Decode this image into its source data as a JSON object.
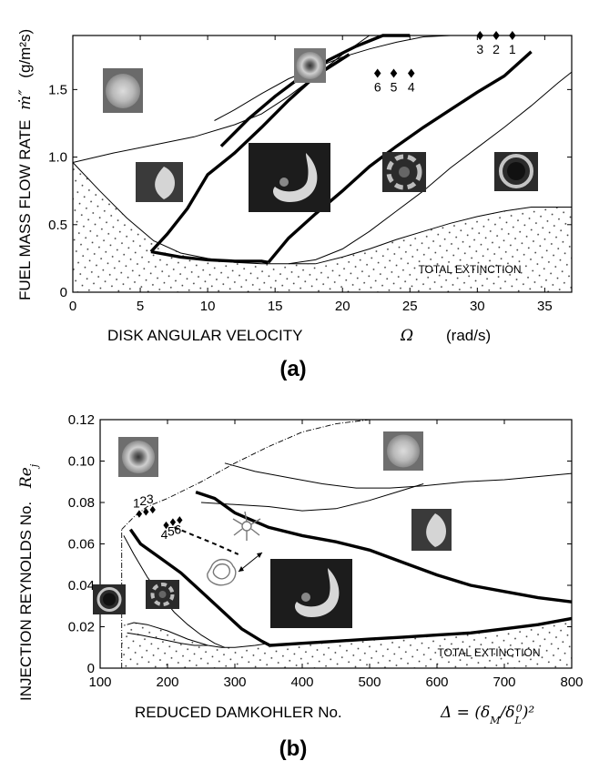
{
  "chart_data": [
    {
      "type": "line",
      "panel_label": "(a)",
      "xlabel": "DISK ANGULAR VELOCITY",
      "xsymbol": "Ω",
      "xunit": "(rad/s)",
      "ylabel": "FUEL MASS FLOW RATE",
      "ysymbol": "ṁ″",
      "yunit": "(g/m²s)",
      "xlim": [
        0,
        37
      ],
      "ylim": [
        0,
        1.9
      ],
      "xticks": [
        0,
        5,
        10,
        15,
        20,
        25,
        30,
        35
      ],
      "yticks": [
        0,
        0.5,
        1.0,
        1.5
      ],
      "ytick_labels": [
        "0",
        "0.5",
        "1.0",
        "1.5"
      ],
      "annotations": [
        {
          "text": "TOTAL EXTINCTION",
          "x": 30,
          "y": 0.17
        }
      ],
      "markers": [
        {
          "label": "6",
          "x": 22.6,
          "y": 1.62
        },
        {
          "label": "5",
          "x": 23.8,
          "y": 1.62
        },
        {
          "label": "4",
          "x": 25.1,
          "y": 1.62
        },
        {
          "label": "3",
          "x": 30.2,
          "y": 1.92
        },
        {
          "label": "2",
          "x": 31.4,
          "y": 1.92
        },
        {
          "label": "1",
          "x": 32.6,
          "y": 1.92
        }
      ],
      "series": [
        {
          "style": "thin",
          "x": [
            0,
            2,
            4,
            6,
            8,
            10,
            12,
            14,
            16,
            18
          ],
          "y": [
            0.96,
            0.75,
            0.55,
            0.38,
            0.29,
            0.25,
            0.22,
            0.21,
            0.21,
            0.21
          ]
        },
        {
          "style": "thin",
          "x": [
            0,
            3,
            6,
            9,
            12,
            14,
            16,
            18,
            20,
            22,
            24
          ],
          "y": [
            0.96,
            1.03,
            1.09,
            1.15,
            1.24,
            1.32,
            1.45,
            1.6,
            1.76,
            1.9,
            2.05
          ]
        },
        {
          "style": "thin",
          "x": [
            10.5,
            12,
            14,
            16,
            18,
            20,
            22,
            24,
            26,
            28,
            30,
            32,
            34,
            37
          ],
          "y": [
            1.27,
            1.35,
            1.47,
            1.58,
            1.66,
            1.74,
            1.8,
            1.85,
            1.89,
            1.92,
            1.94,
            1.95,
            1.96,
            1.96
          ]
        },
        {
          "style": "thin",
          "x": [
            16,
            18,
            20,
            22,
            24,
            26,
            28,
            30,
            32,
            34,
            36,
            37
          ],
          "y": [
            0.21,
            0.24,
            0.32,
            0.45,
            0.6,
            0.75,
            0.92,
            1.07,
            1.22,
            1.38,
            1.55,
            1.63
          ]
        },
        {
          "style": "thin",
          "x": [
            18,
            20,
            22,
            24,
            26,
            28,
            30,
            32,
            34,
            37
          ],
          "y": [
            0.21,
            0.26,
            0.32,
            0.39,
            0.45,
            0.51,
            0.56,
            0.6,
            0.63,
            0.63
          ]
        },
        {
          "style": "thick",
          "x": [
            5.8,
            7,
            8.5,
            10,
            12,
            14,
            16,
            18,
            20.5
          ],
          "y": [
            0.3,
            0.43,
            0.62,
            0.87,
            1.03,
            1.22,
            1.42,
            1.6,
            1.76
          ]
        },
        {
          "style": "thick",
          "x": [
            5.8,
            8,
            10,
            12,
            14,
            14.5
          ],
          "y": [
            0.3,
            0.26,
            0.24,
            0.23,
            0.23,
            0.22
          ]
        },
        {
          "style": "thick",
          "x": [
            11,
            13,
            15,
            17,
            19,
            21,
            23,
            25
          ],
          "y": [
            1.08,
            1.28,
            1.45,
            1.6,
            1.72,
            1.82,
            1.9,
            1.98
          ]
        },
        {
          "style": "thick",
          "x": [
            14.5,
            16,
            18,
            20,
            22,
            24,
            26,
            28,
            30,
            32,
            34
          ],
          "y": [
            0.22,
            0.4,
            0.58,
            0.75,
            0.93,
            1.08,
            1.22,
            1.35,
            1.48,
            1.6,
            1.78
          ]
        }
      ]
    },
    {
      "type": "line",
      "panel_label": "(b)",
      "xlabel": "REDUCED DAMKOHLER No.",
      "xsymbol": "Δ = (δM/δL0)²",
      "ylabel": "INJECTION REYNOLDS No.",
      "ysymbol": "Rej",
      "xlim": [
        100,
        800
      ],
      "ylim": [
        0,
        0.12
      ],
      "xticks": [
        100,
        200,
        300,
        400,
        500,
        600,
        700,
        800
      ],
      "yticks": [
        0,
        0.02,
        0.04,
        0.06,
        0.08,
        0.1,
        0.12
      ],
      "ytick_labels": [
        "0",
        "0.02",
        "0.04",
        "0.06",
        "0.08",
        "0.10",
        "0.12"
      ],
      "annotations": [
        {
          "text": "TOTAL EXTINCTION",
          "x": 670,
          "y": 0.0095
        }
      ],
      "markers": [
        {
          "label": "1",
          "x": 158,
          "y": 0.0745
        },
        {
          "label": "2",
          "x": 168,
          "y": 0.0755
        },
        {
          "label": "3",
          "x": 178,
          "y": 0.0765
        },
        {
          "label": "4",
          "x": 198,
          "y": 0.069
        },
        {
          "label": "5",
          "x": 208,
          "y": 0.0705
        },
        {
          "label": "6",
          "x": 218,
          "y": 0.0715
        }
      ],
      "series": [
        {
          "style": "dashdot",
          "x": [
            132,
            132
          ],
          "y": [
            0,
            0.067
          ]
        },
        {
          "style": "dashdot",
          "x": [
            132,
            150,
            170,
            200,
            250,
            300,
            350,
            400,
            450,
            500
          ],
          "y": [
            0.067,
            0.073,
            0.078,
            0.082,
            0.09,
            0.099,
            0.107,
            0.114,
            0.118,
            0.122
          ]
        },
        {
          "style": "thin",
          "x": [
            135,
            150,
            170,
            190,
            210,
            230,
            250,
            270,
            285
          ],
          "y": [
            0.064,
            0.055,
            0.044,
            0.035,
            0.027,
            0.021,
            0.016,
            0.012,
            0.01
          ]
        },
        {
          "style": "thin",
          "x": [
            140,
            150,
            170,
            200,
            230,
            260,
            280,
            300,
            330,
            350
          ],
          "y": [
            0.021,
            0.022,
            0.021,
            0.018,
            0.014,
            0.011,
            0.01,
            0.01,
            0.011,
            0.012
          ]
        },
        {
          "style": "thin",
          "x": [
            140,
            160,
            190,
            220,
            240,
            260
          ],
          "y": [
            0.017,
            0.016,
            0.014,
            0.012,
            0.011,
            0.011
          ]
        },
        {
          "style": "thin",
          "x": [
            285,
            330,
            380,
            430,
            480,
            530,
            580,
            640,
            700,
            800
          ],
          "y": [
            0.099,
            0.095,
            0.092,
            0.089,
            0.087,
            0.087,
            0.088,
            0.09,
            0.091,
            0.094
          ]
        },
        {
          "style": "thin",
          "x": [
            250,
            300,
            350,
            400,
            450,
            500,
            540,
            580
          ],
          "y": [
            0.08,
            0.079,
            0.078,
            0.076,
            0.077,
            0.081,
            0.085,
            0.089
          ]
        },
        {
          "style": "thick",
          "x": [
            145,
            160,
            190,
            220,
            250,
            280,
            310,
            340,
            352
          ],
          "y": [
            0.067,
            0.06,
            0.053,
            0.046,
            0.037,
            0.028,
            0.019,
            0.013,
            0.011
          ]
        },
        {
          "style": "thick",
          "x": [
            352,
            400,
            450,
            500,
            550,
            600,
            650,
            700,
            750,
            800
          ],
          "y": [
            0.011,
            0.012,
            0.013,
            0.014,
            0.015,
            0.016,
            0.017,
            0.019,
            0.021,
            0.024
          ]
        },
        {
          "style": "thick",
          "x": [
            242,
            270,
            300,
            350,
            400,
            450,
            500,
            550,
            600,
            650,
            700,
            750,
            800
          ],
          "y": [
            0.085,
            0.082,
            0.075,
            0.068,
            0.064,
            0.061,
            0.057,
            0.051,
            0.045,
            0.04,
            0.037,
            0.034,
            0.032
          ]
        },
        {
          "style": "dashed",
          "x": [
            210,
            240,
            270,
            305
          ],
          "y": [
            0.068,
            0.064,
            0.06,
            0.055
          ]
        }
      ]
    }
  ]
}
